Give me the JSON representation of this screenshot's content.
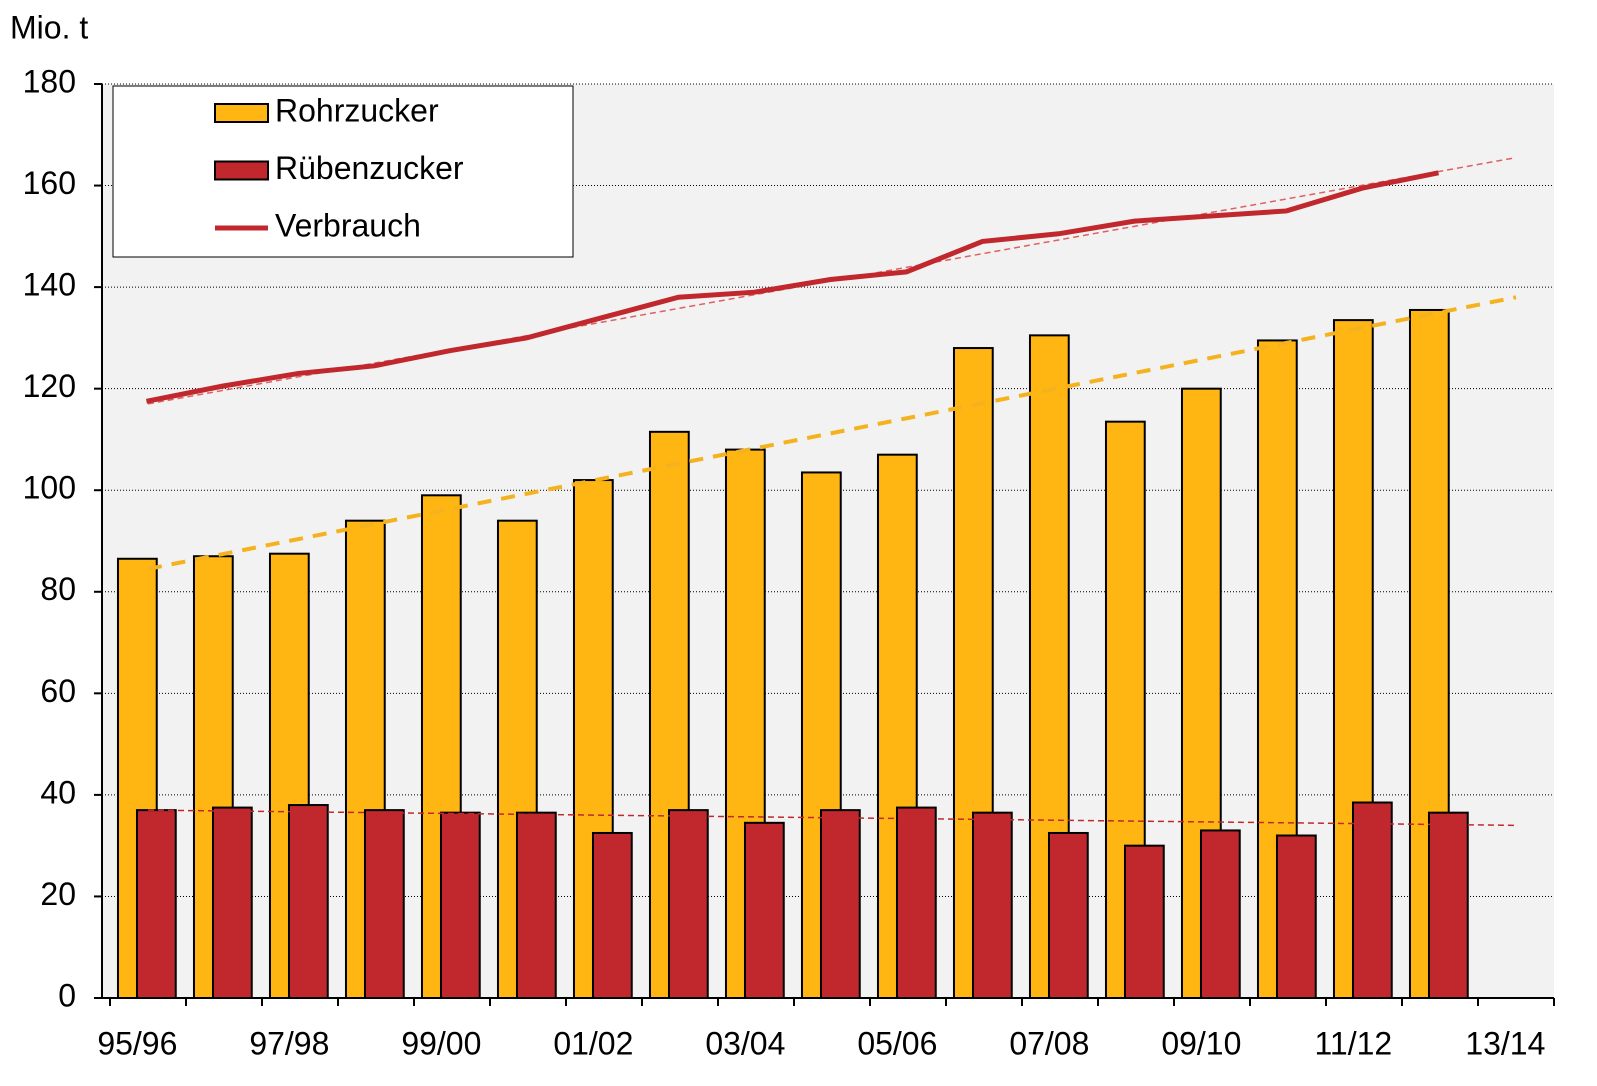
{
  "chart_data": {
    "type": "bar",
    "ylabel": "Mio. t",
    "categories": [
      "95/96",
      null,
      "97/98",
      null,
      "99/00",
      null,
      "01/02",
      null,
      "03/04",
      null,
      "05/06",
      null,
      "07/08",
      null,
      "09/10",
      null,
      "11/12",
      null,
      "13/14"
    ],
    "series": [
      {
        "name": "Rohrzucker",
        "type": "bar",
        "color": "#ffb612",
        "values": [
          86.5,
          87,
          87.5,
          94,
          99,
          94,
          102,
          111.5,
          108,
          103.5,
          107,
          128,
          130.5,
          113.5,
          120,
          129.5,
          133.5,
          135.5,
          null
        ]
      },
      {
        "name": "Rübenzucker",
        "type": "bar",
        "color": "#c0282d",
        "values": [
          37,
          37.5,
          38,
          37,
          36.5,
          36.5,
          32.5,
          37,
          34.5,
          37,
          37.5,
          36.5,
          32.5,
          30,
          33,
          32,
          38.5,
          36.5,
          null
        ]
      },
      {
        "name": "Verbrauch",
        "type": "line",
        "color": "#c0282d",
        "values": [
          117.5,
          120.5,
          123,
          124.5,
          127.5,
          130,
          134,
          138,
          139,
          141.5,
          143,
          149,
          150.5,
          153,
          154,
          155,
          159.5,
          162.5,
          null
        ]
      }
    ],
    "trendlines": [
      {
        "color": "#f5b21f",
        "values": [
          84.5,
          138
        ]
      },
      {
        "color": "#e06060",
        "values": [
          117,
          165.5
        ]
      },
      {
        "color": "#c0282d",
        "values": [
          37,
          34
        ]
      }
    ],
    "ylim": [
      0,
      180
    ],
    "yticks": [
      0,
      20,
      40,
      60,
      80,
      100,
      120,
      140,
      160,
      180
    ],
    "grid": true,
    "legend": "upper left"
  }
}
